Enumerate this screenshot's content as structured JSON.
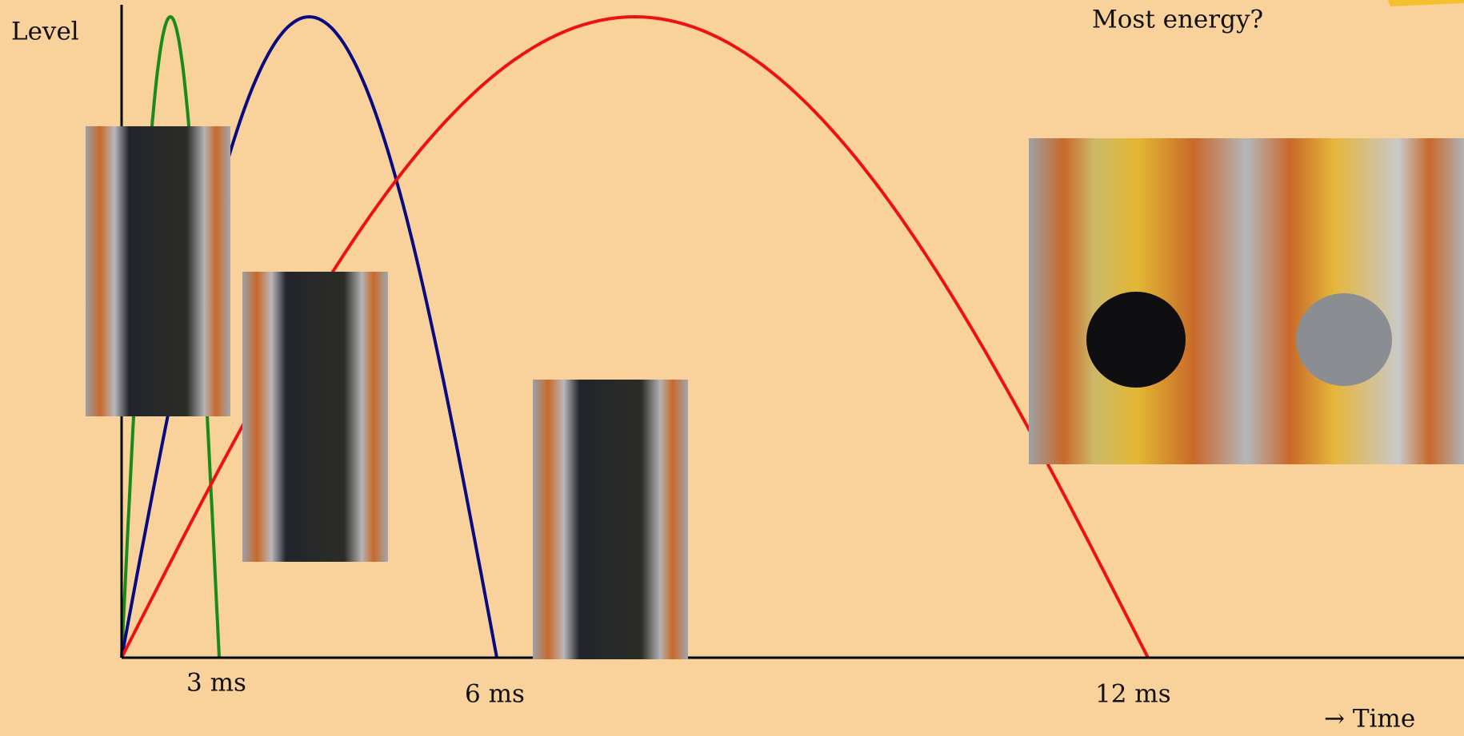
{
  "slide": {
    "y_axis_label": "Level",
    "question": "Most energy?",
    "x_labels": [
      "3 ms",
      "6 ms",
      "12 ms"
    ],
    "x_axis_label": "→ Time"
  }
}
